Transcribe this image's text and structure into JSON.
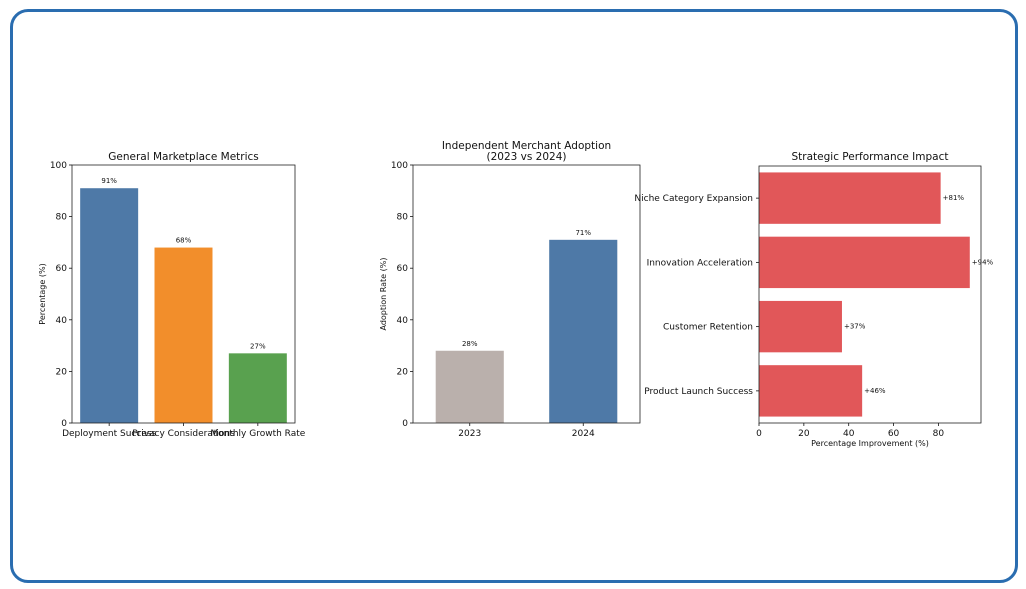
{
  "chart_data": [
    {
      "type": "bar",
      "title": "General Marketplace Metrics",
      "xlabel": "",
      "ylabel": "Percentage (%)",
      "categories": [
        "Deployment Success",
        "Privacy Considerations",
        "Monthly Growth Rate"
      ],
      "values": [
        91,
        68,
        27
      ],
      "data_labels": [
        "91%",
        "68%",
        "27%"
      ],
      "colors": [
        "#4e79a7",
        "#f28e2b",
        "#59a14f"
      ],
      "ylim": [
        0,
        100
      ],
      "yticks": [
        0,
        20,
        40,
        60,
        80,
        100
      ],
      "grid": false
    },
    {
      "type": "bar",
      "title": "Independent Merchant Adoption",
      "subtitle": "(2023 vs 2024)",
      "xlabel": "",
      "ylabel": "Adoption Rate (%)",
      "categories": [
        "2023",
        "2024"
      ],
      "values": [
        28,
        71
      ],
      "data_labels": [
        "28%",
        "71%"
      ],
      "colors": [
        "#bab0ac",
        "#4e79a7"
      ],
      "ylim": [
        0,
        100
      ],
      "yticks": [
        0,
        20,
        40,
        60,
        80,
        100
      ],
      "grid": false
    },
    {
      "type": "bar",
      "orientation": "horizontal",
      "title": "Strategic Performance Impact",
      "xlabel": "Percentage Improvement (%)",
      "ylabel": "",
      "categories": [
        "Niche Category Expansion",
        "Innovation Acceleration",
        "Customer Retention",
        "Product Launch Success"
      ],
      "values": [
        81,
        94,
        37,
        46
      ],
      "data_labels": [
        "+81%",
        "+94%",
        "+37%",
        "+46%"
      ],
      "colors": [
        "#e15759",
        "#e15759",
        "#e15759",
        "#e15759"
      ],
      "xlim": [
        0,
        99
      ],
      "xticks": [
        0,
        20,
        40,
        60,
        80
      ],
      "grid": false
    }
  ]
}
